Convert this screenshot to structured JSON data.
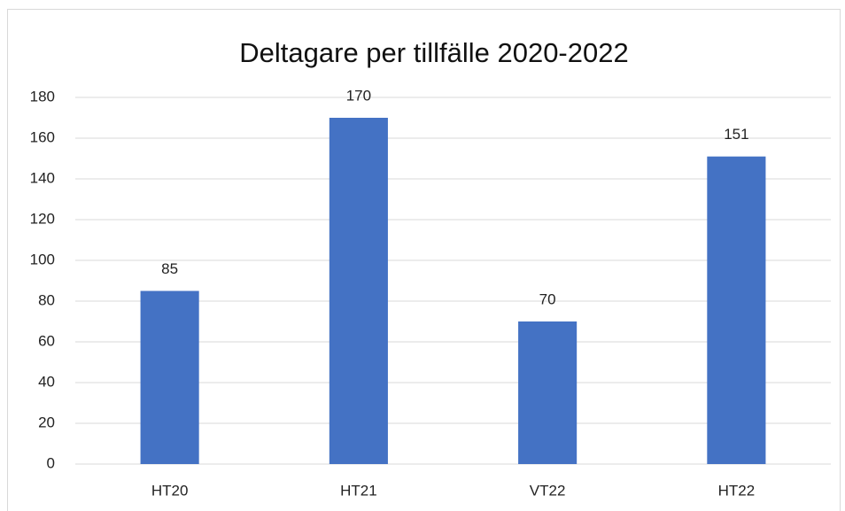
{
  "chart_data": {
    "type": "bar",
    "title": "Deltagare per tillfälle 2020-2022",
    "categories": [
      "HT20",
      "HT21",
      "VT22",
      "HT22"
    ],
    "values": [
      85,
      170,
      70,
      151
    ],
    "color": "#4472c4",
    "ylim": [
      0,
      180
    ],
    "yticks": [
      0,
      20,
      40,
      60,
      80,
      100,
      120,
      140,
      160,
      180
    ],
    "grid": true
  }
}
